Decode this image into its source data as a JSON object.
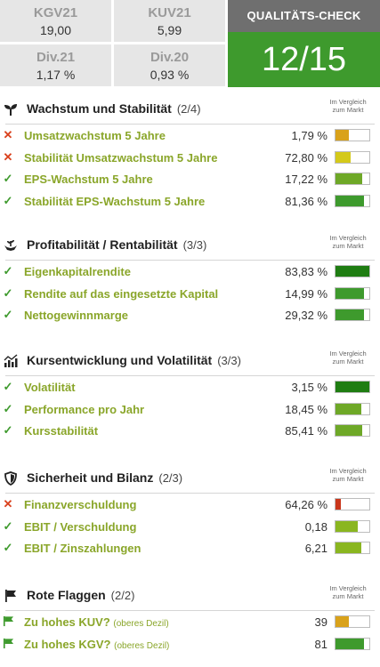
{
  "metrics": [
    {
      "label": "KGV21",
      "value": "19,00"
    },
    {
      "label": "KUV21",
      "value": "5,99"
    },
    {
      "label": "Div.21",
      "value": "1,17 %"
    },
    {
      "label": "Div.20",
      "value": "0,93 %"
    }
  ],
  "quality_check": {
    "title": "QUALITÄTS-CHECK",
    "score": "12/15",
    "color": "#3e9a2d"
  },
  "compare_label_line1": "Im Vergleich",
  "compare_label_line2": "zum Markt",
  "sections": [
    {
      "icon": "sprout-icon",
      "title": "Wachstum und Stabilität",
      "count": "(2/4)",
      "rows": [
        {
          "status": "fail",
          "name": "Umsatzwachstum 5 Jahre",
          "value": "1,79 %",
          "level": 0.4,
          "color": "#d9a21b"
        },
        {
          "status": "fail",
          "name": "Stabilität Umsatzwachstum 5 Jahre",
          "value": "72,80 %",
          "level": 0.45,
          "color": "#d4c91a"
        },
        {
          "status": "pass",
          "name": "EPS-Wachstum 5 Jahre",
          "value": "17,22 %",
          "level": 0.8,
          "color": "#6ea827"
        },
        {
          "status": "pass",
          "name": "Stabilität EPS-Wachstum 5 Jahre",
          "value": "81,36 %",
          "level": 0.85,
          "color": "#3e9a2d"
        }
      ]
    },
    {
      "icon": "hands-plant-icon",
      "title": "Profitabilität / Rentabilität",
      "count": "(3/3)",
      "rows": [
        {
          "status": "pass",
          "name": "Eigenkapitalrendite",
          "value": "83,83 %",
          "level": 1.0,
          "color": "#1f7d12"
        },
        {
          "status": "pass",
          "name": "Rendite auf das eingesetzte Kapital",
          "value": "14,99 %",
          "level": 0.85,
          "color": "#3e9a2d"
        },
        {
          "status": "pass",
          "name": "Nettogewinnmarge",
          "value": "29,32 %",
          "level": 0.85,
          "color": "#3e9a2d"
        }
      ]
    },
    {
      "icon": "chart-bars-icon",
      "title": "Kursentwicklung und Volatilität",
      "count": "(3/3)",
      "rows": [
        {
          "status": "pass",
          "name": "Volatilität",
          "value": "3,15 %",
          "level": 1.0,
          "color": "#1f7d12"
        },
        {
          "status": "pass",
          "name": "Performance pro Jahr",
          "value": "18,45 %",
          "level": 0.75,
          "color": "#6ea827"
        },
        {
          "status": "pass",
          "name": "Kursstabilität",
          "value": "85,41 %",
          "level": 0.8,
          "color": "#6ea827"
        }
      ]
    },
    {
      "icon": "shield-icon",
      "title": "Sicherheit und Bilanz",
      "count": "(2/3)",
      "rows": [
        {
          "status": "fail",
          "name": "Finanzverschuldung",
          "value": "64,26 %",
          "level": 0.15,
          "color": "#c9361b"
        },
        {
          "status": "pass",
          "name": "EBIT / Verschuldung",
          "value": "0,18",
          "level": 0.65,
          "color": "#8ab620"
        },
        {
          "status": "pass",
          "name": "EBIT / Zinszahlungen",
          "value": "6,21",
          "level": 0.75,
          "color": "#8ab620"
        }
      ]
    },
    {
      "icon": "flag-icon",
      "title": "Rote Flaggen",
      "count": "(2/2)",
      "rows": [
        {
          "status": "flag",
          "name": "Zu hohes KUV?",
          "sub": "(oberes Dezil)",
          "value": "39",
          "level": 0.4,
          "color": "#d9a21b"
        },
        {
          "status": "flag",
          "name": "Zu hohes KGV?",
          "sub": "(oberes Dezil)",
          "value": "81",
          "level": 0.85,
          "color": "#3e9a2d"
        }
      ]
    }
  ]
}
